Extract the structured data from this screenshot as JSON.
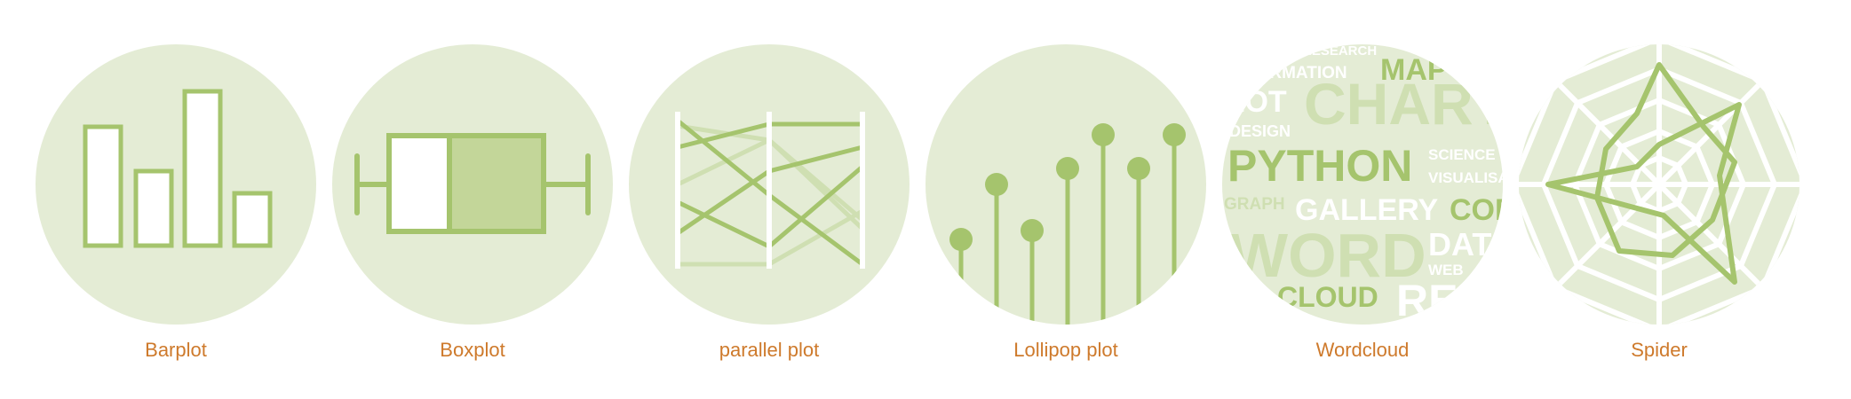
{
  "colors": {
    "circle_fill": "#e4ecd5",
    "stroke_green": "#a5c46d",
    "box_fill_green": "#c3d699",
    "light_green": "#cfdfb2",
    "label_orange": "#ce7a2c",
    "white": "#ffffff"
  },
  "gallery": {
    "items": [
      {
        "label": "Barplot",
        "icon": "barplot-icon"
      },
      {
        "label": "Boxplot",
        "icon": "boxplot-icon"
      },
      {
        "label": "parallel plot",
        "icon": "parallel-plot-icon"
      },
      {
        "label": "Lollipop plot",
        "icon": "lollipop-plot-icon"
      },
      {
        "label": "Wordcloud",
        "icon": "wordcloud-icon"
      },
      {
        "label": "Spider",
        "icon": "spider-icon"
      }
    ],
    "wordcloud_words": {
      "w1": "RESEARCH",
      "w2": "INFORMATION",
      "w3": "MAP",
      "w4": "PLOT",
      "w5": "CHART",
      "w6": "DESIGN",
      "w7": "PYTHON",
      "w8": "SCIENCE",
      "w9": "VISUALISATION",
      "w10": "GRAPH",
      "w11": "GALLERY",
      "w12": "CODE",
      "w13": "WORD",
      "w14": "DATA",
      "w15": "WEB",
      "w16": "CLOUD",
      "w17": "RE"
    }
  }
}
